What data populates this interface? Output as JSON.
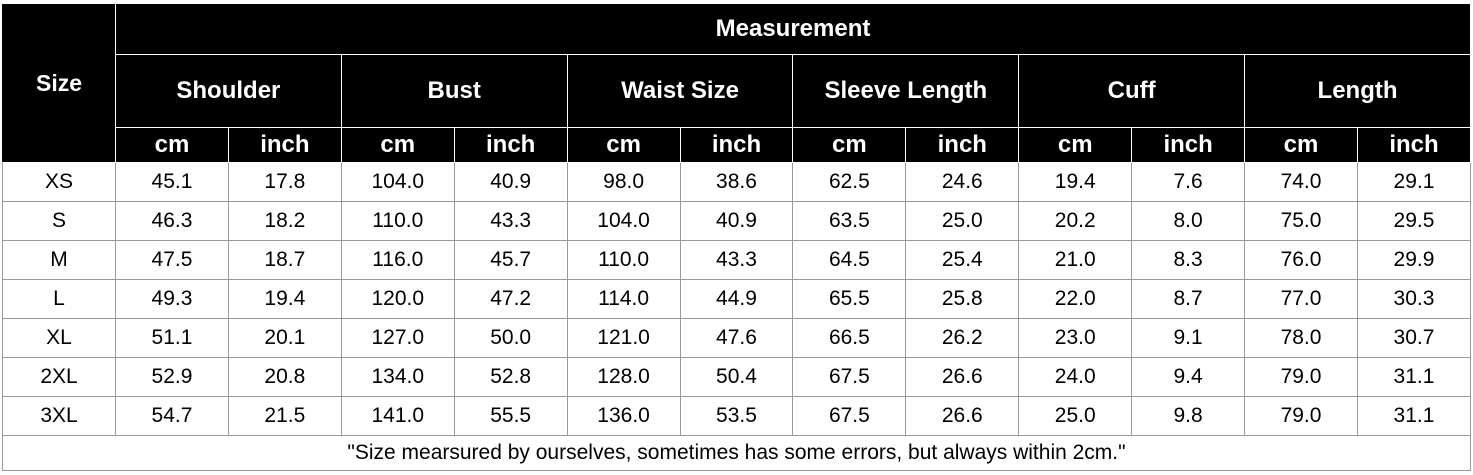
{
  "table": {
    "size_label": "Size",
    "measurement_label": "Measurement",
    "groups": [
      {
        "name": "Shoulder",
        "units": [
          "cm",
          "inch"
        ]
      },
      {
        "name": "Bust",
        "units": [
          "cm",
          "inch"
        ]
      },
      {
        "name": "Waist Size",
        "units": [
          "cm",
          "inch"
        ]
      },
      {
        "name": "Sleeve Length",
        "units": [
          "cm",
          "inch"
        ]
      },
      {
        "name": "Cuff",
        "units": [
          "cm",
          "inch"
        ]
      },
      {
        "name": "Length",
        "units": [
          "cm",
          "inch"
        ]
      }
    ],
    "rows": [
      {
        "size": "XS",
        "values": [
          "45.1",
          "17.8",
          "104.0",
          "40.9",
          "98.0",
          "38.6",
          "62.5",
          "24.6",
          "19.4",
          "7.6",
          "74.0",
          "29.1"
        ]
      },
      {
        "size": "S",
        "values": [
          "46.3",
          "18.2",
          "110.0",
          "43.3",
          "104.0",
          "40.9",
          "63.5",
          "25.0",
          "20.2",
          "8.0",
          "75.0",
          "29.5"
        ]
      },
      {
        "size": "M",
        "values": [
          "47.5",
          "18.7",
          "116.0",
          "45.7",
          "110.0",
          "43.3",
          "64.5",
          "25.4",
          "21.0",
          "8.3",
          "76.0",
          "29.9"
        ]
      },
      {
        "size": "L",
        "values": [
          "49.3",
          "19.4",
          "120.0",
          "47.2",
          "114.0",
          "44.9",
          "65.5",
          "25.8",
          "22.0",
          "8.7",
          "77.0",
          "30.3"
        ]
      },
      {
        "size": "XL",
        "values": [
          "51.1",
          "20.1",
          "127.0",
          "50.0",
          "121.0",
          "47.6",
          "66.5",
          "26.2",
          "23.0",
          "9.1",
          "78.0",
          "30.7"
        ]
      },
      {
        "size": "2XL",
        "values": [
          "52.9",
          "20.8",
          "134.0",
          "52.8",
          "128.0",
          "50.4",
          "67.5",
          "26.6",
          "24.0",
          "9.4",
          "79.0",
          "31.1"
        ]
      },
      {
        "size": "3XL",
        "values": [
          "54.7",
          "21.5",
          "141.0",
          "55.5",
          "136.0",
          "53.5",
          "67.5",
          "26.6",
          "25.0",
          "9.8",
          "79.0",
          "31.1"
        ]
      }
    ],
    "note": "\"Size mearsured by ourselves, sometimes has some errors, but always within 2cm.\""
  }
}
